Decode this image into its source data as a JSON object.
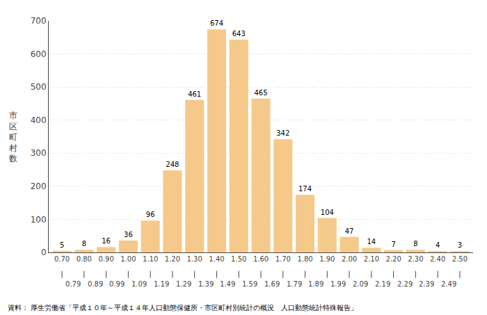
{
  "chart_data": {
    "type": "bar",
    "categories": [
      "0.70",
      "0.80",
      "0.90",
      "1.00",
      "1.10",
      "1.20",
      "1.30",
      "1.40",
      "1.50",
      "1.60",
      "1.70",
      "1.80",
      "1.90",
      "2.00",
      "2.10",
      "2.20",
      "2.30",
      "2.40",
      "2.50"
    ],
    "values": [
      5,
      8,
      16,
      36,
      96,
      248,
      461,
      674,
      643,
      465,
      342,
      174,
      104,
      47,
      14,
      7,
      8,
      4,
      3
    ],
    "annotations": [
      "0.79",
      "0.89",
      "0.99",
      "1.09",
      "1.19",
      "1.29",
      "1.39",
      "1.49",
      "1.59",
      "1.69",
      "1.79",
      "1.89",
      "1.99",
      "2.09",
      "2.19",
      "2.29",
      "2.39",
      "2.49"
    ],
    "ylabel": "市\n区\n町\n村\n数",
    "source": "資料： 厚生労働省「平成１０年～平成１４年人口動態保健所・市区町村別統計の概況　人口動態統計特殊報告」",
    "color": "#F5C98A",
    "ylim": [
      0,
      700
    ],
    "yticks": [
      0,
      100,
      200,
      300,
      400,
      500,
      600,
      700
    ],
    "grid": true,
    "data_labels": true
  }
}
